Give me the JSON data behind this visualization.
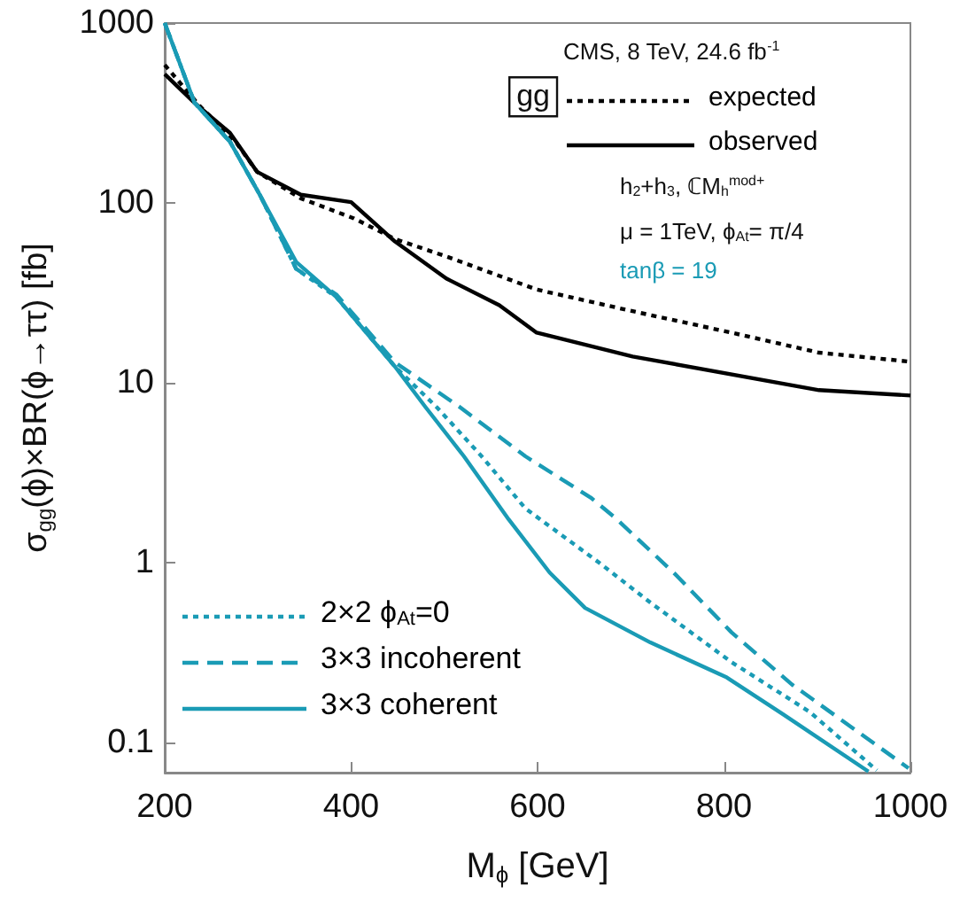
{
  "chart_data": {
    "type": "line",
    "xlabel": "M$_{ϕ}$ [GeV]",
    "ylabel": "σ$_{gg}$(ϕ)×BR(ϕ→ττ) [fb]",
    "annotations": [
      "CMS, 8 TeV, 24.6 fb$^{-1}$",
      "gg",
      "h$_{2}$+h$_{3}$, ℂM$_{h}$$^{mod+}$",
      "μ = 1TeV, ϕ$_{At}$= π/4",
      "tanβ = 19"
    ],
    "log": "y",
    "xlim": [
      200,
      1000
    ],
    "ylim": [
      0.068,
      1000
    ],
    "xticks": [
      200,
      400,
      600,
      800,
      1000
    ],
    "yticks": [
      0.1,
      1,
      10,
      100,
      1000
    ],
    "grid": false,
    "legend": "bottom left",
    "marker": "none",
    "series": [
      {
        "name": "expected",
        "color": "#000000",
        "line_style": "dotted",
        "x": [
          200,
          238,
          276,
          299,
          346,
          403,
          447,
          504,
          599,
          702,
          808,
          902,
          1000
        ],
        "values": [
          585,
          344,
          219,
          149,
          106,
          82,
          63,
          50,
          33,
          25,
          19,
          14.7,
          13.1
        ]
      },
      {
        "name": "observed",
        "color": "#000000",
        "line_style": "solid",
        "x": [
          200,
          232,
          270,
          299,
          346,
          400,
          447,
          502,
          559,
          599,
          702,
          902,
          1000
        ],
        "values": [
          520,
          360,
          245,
          149,
          111,
          101,
          61,
          38,
          27,
          19,
          14,
          9.1,
          8.5
        ]
      },
      {
        "name": "2×2 ϕ$_{At}$=0",
        "color": "#1a9bb5",
        "line_style": "dotted",
        "x": [
          200,
          232,
          270,
          302,
          341,
          384,
          447,
          492,
          540,
          587,
          666,
          721,
          808,
          892,
          964
        ],
        "values": [
          1000,
          360,
          219,
          111,
          43,
          30,
          12.3,
          7.3,
          3.9,
          2.0,
          1.0,
          0.6,
          0.28,
          0.148,
          0.07
        ]
      },
      {
        "name": "3×3 incoherent",
        "color": "#1a9bb5",
        "line_style": "dashed",
        "x": [
          200,
          232,
          270,
          302,
          341,
          384,
          447,
          517,
          587,
          657,
          683,
          746,
          808,
          873,
          998
        ],
        "values": [
          1000,
          360,
          219,
          111,
          43,
          31,
          13,
          7.3,
          3.9,
          2.3,
          1.78,
          0.88,
          0.41,
          0.21,
          0.072
        ]
      },
      {
        "name": "3×3 coherent",
        "color": "#1a9bb5",
        "line_style": "solid",
        "x": [
          200,
          232,
          270,
          302,
          341,
          384,
          447,
          480,
          521,
          569,
          613,
          651,
          721,
          803,
          863,
          955
        ],
        "values": [
          1000,
          360,
          219,
          111,
          47,
          30,
          12.3,
          7.3,
          3.9,
          1.74,
          0.88,
          0.56,
          0.36,
          0.23,
          0.144,
          0.069
        ]
      }
    ]
  }
}
